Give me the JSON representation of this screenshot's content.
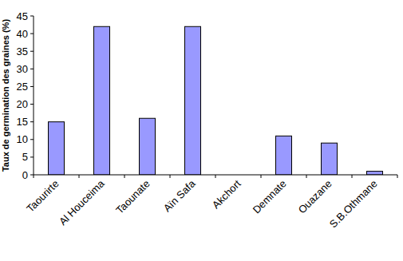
{
  "chart_data": {
    "type": "bar",
    "y_label": "Taux de germination des graines (%)",
    "categories": [
      "Taourirte",
      "Al Houceima",
      "Taounate",
      "Aïn Safa",
      "Akchort",
      "Demnate",
      "Ouazane",
      "S.B.Othmane"
    ],
    "values": [
      15,
      42,
      16,
      42,
      0,
      11,
      9,
      1
    ],
    "color": "#9999ff",
    "ylim": [
      0,
      45
    ],
    "yticks": [
      0,
      5,
      10,
      15,
      20,
      25,
      30,
      35,
      40,
      45
    ],
    "grid": false
  }
}
